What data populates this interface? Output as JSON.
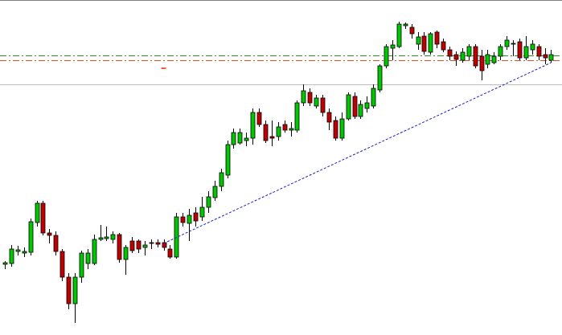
{
  "chart_data": {
    "type": "candlestick",
    "open": [
      88,
      89,
      104,
      102,
      103,
      140,
      164,
      127,
      124,
      104,
      72,
      39,
      72,
      89,
      89,
      119,
      120,
      119,
      125,
      94,
      117,
      117,
      109,
      114,
      115,
      115,
      107,
      97,
      147,
      139,
      152,
      147,
      159,
      171,
      185,
      199,
      237,
      239,
      242,
      245,
      277,
      262,
      247,
      247,
      262,
      255,
      255,
      289,
      302,
      285,
      295,
      277,
      267,
      245,
      269,
      297,
      272,
      282,
      285,
      305,
      335,
      357,
      359,
      385,
      383,
      362,
      372,
      352,
      377,
      365,
      355,
      349,
      342,
      347,
      359,
      347,
      337,
      339,
      347,
      359,
      362,
      365,
      345,
      355,
      359,
      349,
      342
    ],
    "high": [
      92,
      112,
      111,
      109,
      145,
      167,
      167,
      132,
      129,
      107,
      77,
      77,
      105,
      107,
      125,
      137,
      135,
      129,
      127,
      112,
      122,
      119,
      117,
      119,
      119,
      119,
      112,
      152,
      152,
      157,
      159,
      172,
      179,
      192,
      207,
      242,
      257,
      257,
      252,
      282,
      282,
      267,
      267,
      265,
      267,
      265,
      292,
      312,
      307,
      299,
      299,
      282,
      272,
      277,
      302,
      302,
      292,
      297,
      312,
      337,
      362,
      367,
      390,
      389,
      387,
      377,
      377,
      377,
      379,
      369,
      359,
      353,
      357,
      362,
      362,
      355,
      355,
      352,
      362,
      372,
      367,
      369,
      372,
      367,
      362,
      357,
      355
    ],
    "low": [
      82,
      85,
      99,
      97,
      99,
      135,
      124,
      114,
      99,
      67,
      32,
      15,
      65,
      82,
      87,
      117,
      117,
      114,
      90,
      75,
      102,
      102,
      99,
      107,
      109,
      105,
      95,
      95,
      135,
      117,
      135,
      142,
      152,
      167,
      179,
      195,
      232,
      237,
      235,
      237,
      259,
      239,
      235,
      242,
      252,
      247,
      252,
      285,
      285,
      282,
      272,
      255,
      242,
      242,
      267,
      269,
      269,
      277,
      282,
      302,
      332,
      342,
      357,
      381,
      369,
      355,
      349,
      349,
      357,
      352,
      342,
      335,
      339,
      342,
      332,
      317,
      332,
      337,
      342,
      355,
      347,
      342,
      342,
      349,
      342,
      337,
      339
    ],
    "close": [
      90,
      107,
      106,
      104,
      141,
      164,
      127,
      124,
      104,
      72,
      39,
      72,
      102,
      102,
      119,
      121,
      122,
      125,
      94,
      109,
      105,
      107,
      112,
      115,
      113,
      109,
      97,
      147,
      140,
      149,
      142,
      159,
      172,
      185,
      202,
      237,
      252,
      252,
      245,
      277,
      262,
      242,
      245,
      259,
      255,
      257,
      289,
      304,
      289,
      295,
      277,
      265,
      245,
      269,
      299,
      272,
      287,
      289,
      307,
      335,
      359,
      361,
      387,
      387,
      375,
      371,
      353,
      375,
      362,
      355,
      347,
      343,
      352,
      359,
      335,
      329,
      349,
      347,
      359,
      367,
      363,
      345,
      359,
      362,
      347,
      345,
      349
    ],
    "up_color": "#00c800",
    "down_color": "#c00000",
    "ylim": [
      0,
      417
    ],
    "levels": [
      {
        "value": 348,
        "color": "#2e8b2e",
        "style": "dash-dot"
      },
      {
        "value": 342,
        "color": "#e05020",
        "style": "dash-dot"
      },
      {
        "value": 312,
        "color": "#c0c0c0",
        "style": "solid"
      }
    ],
    "trendline": {
      "color": "#2020c0",
      "start": {
        "index": 25,
        "value": 114
      },
      "end": {
        "index": 86,
        "value": 339
      }
    },
    "markers": [
      {
        "index": 25,
        "value": 332,
        "color": "#e03000"
      }
    ]
  }
}
